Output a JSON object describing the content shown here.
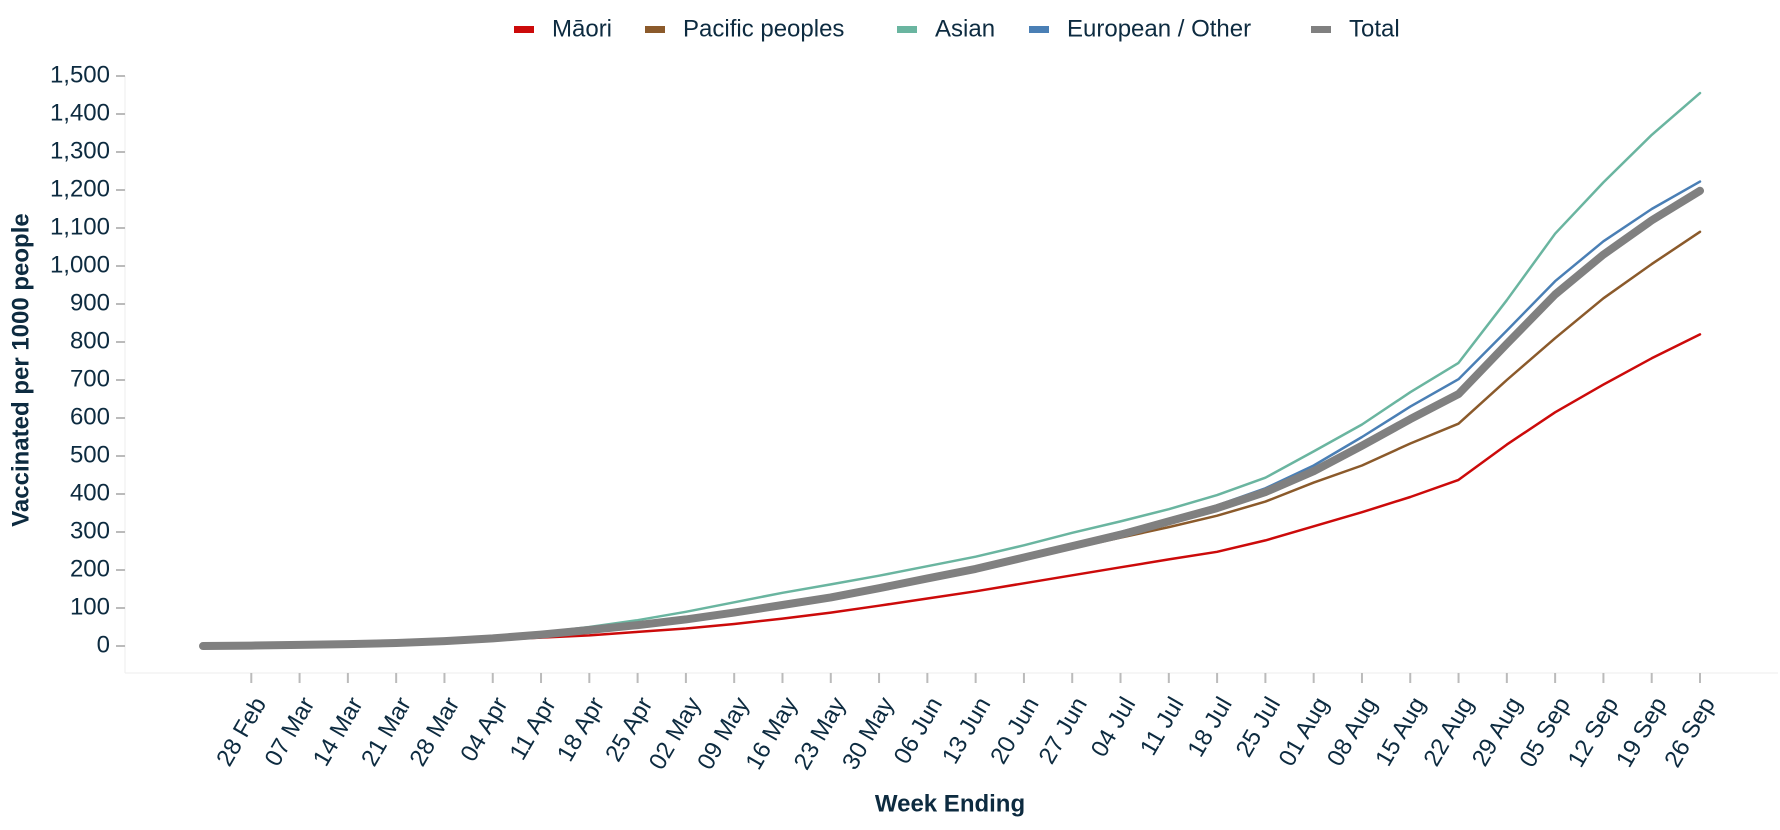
{
  "chart_data": {
    "type": "line",
    "x_label": "Week Ending",
    "y_label": "Vaccinated per 1000 people",
    "categories": [
      null,
      "28 Feb",
      "07 Mar",
      "14 Mar",
      "21 Mar",
      "28 Mar",
      "04 Apr",
      "11 Apr",
      "18 Apr",
      "25 Apr",
      "02 May",
      "09 May",
      "16 May",
      "23 May",
      "30 May",
      "06 Jun",
      "13 Jun",
      "20 Jun",
      "27 Jun",
      "04 Jul",
      "11 Jul",
      "18 Jul",
      "25 Jul",
      "01 Aug",
      "08 Aug",
      "15 Aug",
      "22 Aug",
      "29 Aug",
      "05 Sep",
      "12 Sep",
      "19 Sep",
      "26 Sep"
    ],
    "series": [
      {
        "name": "Māori",
        "color": "#cc0a0a",
        "width": 2.5,
        "values": [
          0,
          1,
          2,
          4,
          6,
          10,
          16,
          22,
          28,
          37,
          46,
          58,
          72,
          88,
          106,
          125,
          144,
          165,
          186,
          207,
          228,
          248,
          278,
          315,
          352,
          392,
          437,
          530,
          615,
          688,
          757,
          820
        ]
      },
      {
        "name": "Pacific peoples",
        "color": "#8b5a2b",
        "width": 2.5,
        "values": [
          0,
          1,
          2,
          4,
          7,
          11,
          18,
          27,
          38,
          50,
          64,
          82,
          102,
          123,
          148,
          173,
          198,
          227,
          257,
          285,
          313,
          343,
          380,
          430,
          475,
          533,
          585,
          700,
          810,
          915,
          1005,
          1090
        ]
      },
      {
        "name": "Asian",
        "color": "#6ab5a0",
        "width": 2.5,
        "values": [
          0,
          1,
          3,
          5,
          9,
          14,
          22,
          35,
          50,
          68,
          90,
          115,
          140,
          162,
          185,
          210,
          235,
          265,
          298,
          328,
          360,
          397,
          443,
          512,
          583,
          668,
          745,
          910,
          1085,
          1220,
          1345,
          1455
        ]
      },
      {
        "name": "European / Other",
        "color": "#4a7fb5",
        "width": 2.5,
        "values": [
          0,
          1,
          3,
          5,
          8,
          13,
          20,
          30,
          43,
          56,
          72,
          90,
          110,
          130,
          155,
          180,
          205,
          235,
          267,
          300,
          333,
          370,
          415,
          475,
          550,
          630,
          702,
          830,
          960,
          1065,
          1150,
          1222
        ]
      },
      {
        "name": "Total",
        "color": "#808080",
        "width": 8,
        "values": [
          0,
          1,
          3,
          5,
          8,
          13,
          20,
          30,
          42,
          55,
          70,
          88,
          108,
          128,
          152,
          178,
          203,
          233,
          263,
          293,
          328,
          363,
          405,
          460,
          527,
          597,
          663,
          795,
          925,
          1030,
          1120,
          1198
        ]
      }
    ],
    "ylim": [
      0,
      1500
    ],
    "yticks": [
      0,
      100,
      200,
      300,
      400,
      500,
      600,
      700,
      800,
      900,
      {
        "value": 1000,
        "label": "1,000"
      },
      {
        "value": 1100,
        "label": "1,100"
      },
      {
        "value": 1200,
        "label": "1,200"
      },
      {
        "value": 1300,
        "label": "1,300"
      },
      {
        "value": 1400,
        "label": "1,400"
      },
      {
        "value": 1500,
        "label": "1,500"
      }
    ],
    "legend": "top"
  }
}
